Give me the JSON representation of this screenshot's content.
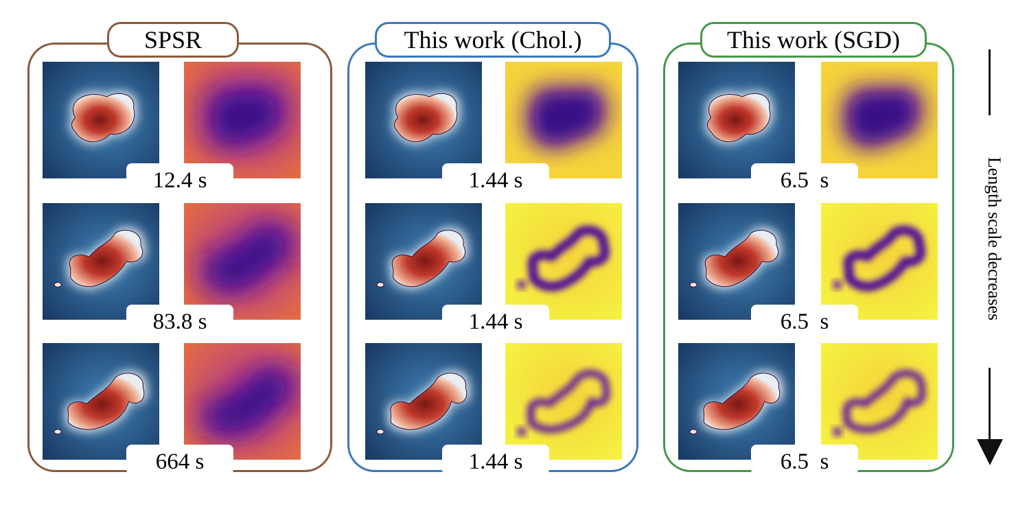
{
  "panels": [
    {
      "title": "SPSR",
      "color": "#8a5a3a",
      "times": [
        "12.4 s",
        "83.8 s",
        "664 s"
      ]
    },
    {
      "title": "This work (Chol.)",
      "color": "#3a78bb",
      "times": [
        "1.44 s",
        "1.44 s",
        "1.44 s"
      ]
    },
    {
      "title": "This work (SGD)",
      "color": "#44984a",
      "times": [
        "6.5  s",
        "6.5  s",
        "6.5  s"
      ]
    }
  ],
  "axis_label": "Length scale decreases",
  "colormaps": {
    "field": [
      "#1a3b66",
      "#3f80b3",
      "#e9eef2",
      "#f0b59a",
      "#c0392b",
      "#7a1714"
    ],
    "uncertainty": [
      "#2a0a7a",
      "#6a17b0",
      "#b03a8c",
      "#e8703c",
      "#f5d33a",
      "#f5f542"
    ]
  }
}
